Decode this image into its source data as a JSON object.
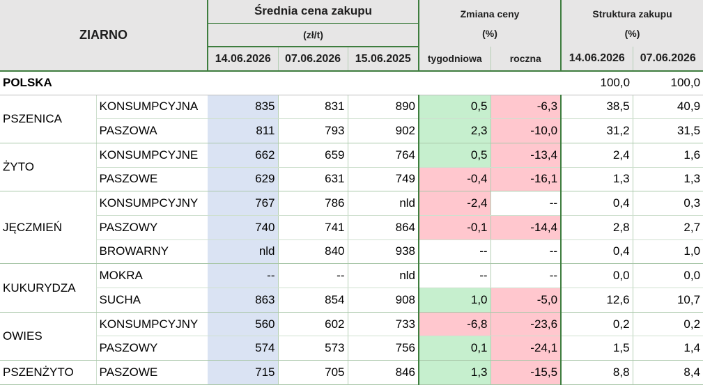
{
  "header": {
    "grain": "ZIARNO",
    "avg_price_title": "Średnia cena zakupu",
    "avg_price_unit": "(zł/t)",
    "change_title": "Zmiana ceny",
    "change_unit": "(%)",
    "structure_title": "Struktura zakupu",
    "structure_unit": "(%)",
    "dates": [
      "14.06.2026",
      "07.06.2026",
      "15.06.2025"
    ],
    "change_cols": [
      "tygodniowa",
      "roczna"
    ],
    "structure_dates": [
      "14.06.2026",
      "07.06.2026"
    ]
  },
  "polska": {
    "label": "POLSKA",
    "s1": "100,0",
    "s2": "100,0"
  },
  "groups": [
    {
      "name": "PSZENICA",
      "rows": [
        {
          "type": "KONSUMPCYJNA",
          "p1": "835",
          "p2": "831",
          "p3": "890",
          "w": "0,5",
          "y": "-6,3",
          "s1": "38,5",
          "s2": "40,9"
        },
        {
          "type": "PASZOWA",
          "p1": "811",
          "p2": "793",
          "p3": "902",
          "w": "2,3",
          "y": "-10,0",
          "s1": "31,2",
          "s2": "31,5"
        }
      ]
    },
    {
      "name": "ŻYTO",
      "rows": [
        {
          "type": "KONSUMPCYJNE",
          "p1": "662",
          "p2": "659",
          "p3": "764",
          "w": "0,5",
          "y": "-13,4",
          "s1": "2,4",
          "s2": "1,6"
        },
        {
          "type": "PASZOWE",
          "p1": "629",
          "p2": "631",
          "p3": "749",
          "w": "-0,4",
          "y": "-16,1",
          "s1": "1,3",
          "s2": "1,3"
        }
      ]
    },
    {
      "name": "JĘCZMIEŃ",
      "rows": [
        {
          "type": "KONSUMPCYJNY",
          "p1": "767",
          "p2": "786",
          "p3": "nld",
          "w": "-2,4",
          "y": "--",
          "s1": "0,4",
          "s2": "0,3"
        },
        {
          "type": "PASZOWY",
          "p1": "740",
          "p2": "741",
          "p3": "864",
          "w": "-0,1",
          "y": "-14,4",
          "s1": "2,8",
          "s2": "2,7"
        },
        {
          "type": "BROWARNY",
          "p1": "nld",
          "p2": "840",
          "p3": "938",
          "w": "--",
          "y": "--",
          "s1": "0,4",
          "s2": "1,0"
        }
      ]
    },
    {
      "name": "KUKURYDZA",
      "rows": [
        {
          "type": "MOKRA",
          "p1": "--",
          "p2": "--",
          "p3": "nld",
          "w": "--",
          "y": "--",
          "s1": "0,0",
          "s2": "0,0"
        },
        {
          "type": "SUCHA",
          "p1": "863",
          "p2": "854",
          "p3": "908",
          "w": "1,0",
          "y": "-5,0",
          "s1": "12,6",
          "s2": "10,7"
        }
      ]
    },
    {
      "name": "OWIES",
      "rows": [
        {
          "type": "KONSUMPCYJNY",
          "p1": "560",
          "p2": "602",
          "p3": "733",
          "w": "-6,8",
          "y": "-23,6",
          "s1": "0,2",
          "s2": "0,2"
        },
        {
          "type": "PASZOWY",
          "p1": "574",
          "p2": "573",
          "p3": "756",
          "w": "0,1",
          "y": "-24,1",
          "s1": "1,5",
          "s2": "1,4"
        }
      ]
    },
    {
      "name": "PSZENŻYTO",
      "rows": [
        {
          "type": "PASZOWE",
          "p1": "715",
          "p2": "705",
          "p3": "846",
          "w": "1,3",
          "y": "-15,5",
          "s1": "8,8",
          "s2": "8,4"
        }
      ]
    }
  ],
  "colors": {
    "price_current": "#dae3f3",
    "positive": "#c6efce",
    "negative": "#ffc7ce",
    "header": "#e7e6e6",
    "rule": "#3e7d3e"
  }
}
